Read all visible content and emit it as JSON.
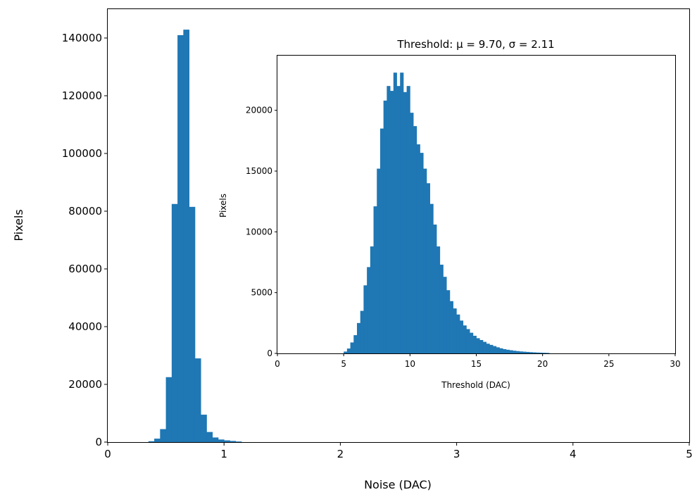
{
  "chart_data": [
    {
      "type": "bar",
      "xlabel": "Noise (DAC)",
      "ylabel": "Pixels",
      "xlim": [
        0,
        5
      ],
      "ylim": [
        0,
        150000
      ],
      "xticks": [
        0,
        1,
        2,
        3,
        4,
        5
      ],
      "yticks": [
        0,
        20000,
        40000,
        60000,
        80000,
        100000,
        120000,
        140000
      ],
      "bin_width": 0.05,
      "color": "#1f77b4",
      "bins": [
        {
          "x": 0.35,
          "y": 300
        },
        {
          "x": 0.4,
          "y": 1200
        },
        {
          "x": 0.45,
          "y": 4500
        },
        {
          "x": 0.5,
          "y": 22500
        },
        {
          "x": 0.55,
          "y": 82500
        },
        {
          "x": 0.6,
          "y": 141000
        },
        {
          "x": 0.65,
          "y": 142900
        },
        {
          "x": 0.7,
          "y": 81500
        },
        {
          "x": 0.75,
          "y": 29000
        },
        {
          "x": 0.8,
          "y": 9500
        },
        {
          "x": 0.85,
          "y": 3500
        },
        {
          "x": 0.9,
          "y": 1600
        },
        {
          "x": 0.95,
          "y": 900
        },
        {
          "x": 1.0,
          "y": 600
        },
        {
          "x": 1.05,
          "y": 400
        },
        {
          "x": 1.1,
          "y": 200
        }
      ]
    },
    {
      "type": "bar",
      "title": "Threshold: μ = 9.70,  σ = 2.11",
      "xlabel": "Threshold (DAC)",
      "ylabel": "Pixels",
      "xlim": [
        0,
        30
      ],
      "ylim": [
        0,
        24500
      ],
      "xticks": [
        0,
        5,
        10,
        15,
        20,
        25,
        30
      ],
      "yticks": [
        0,
        5000,
        10000,
        15000,
        20000
      ],
      "bin_width": 0.25,
      "color": "#1f77b4",
      "bins": [
        {
          "x": 5.0,
          "y": 150
        },
        {
          "x": 5.25,
          "y": 400
        },
        {
          "x": 5.5,
          "y": 900
        },
        {
          "x": 5.75,
          "y": 1500
        },
        {
          "x": 6.0,
          "y": 2500
        },
        {
          "x": 6.25,
          "y": 3500
        },
        {
          "x": 6.5,
          "y": 5600
        },
        {
          "x": 6.75,
          "y": 7100
        },
        {
          "x": 7.0,
          "y": 8800
        },
        {
          "x": 7.25,
          "y": 12100
        },
        {
          "x": 7.5,
          "y": 15200
        },
        {
          "x": 7.75,
          "y": 18500
        },
        {
          "x": 8.0,
          "y": 20800
        },
        {
          "x": 8.25,
          "y": 22000
        },
        {
          "x": 8.5,
          "y": 21600
        },
        {
          "x": 8.75,
          "y": 23100
        },
        {
          "x": 9.0,
          "y": 22000
        },
        {
          "x": 9.25,
          "y": 23100
        },
        {
          "x": 9.5,
          "y": 21500
        },
        {
          "x": 9.75,
          "y": 22000
        },
        {
          "x": 10.0,
          "y": 19800
        },
        {
          "x": 10.25,
          "y": 18700
        },
        {
          "x": 10.5,
          "y": 17200
        },
        {
          "x": 10.75,
          "y": 16500
        },
        {
          "x": 11.0,
          "y": 15200
        },
        {
          "x": 11.25,
          "y": 14000
        },
        {
          "x": 11.5,
          "y": 12300
        },
        {
          "x": 11.75,
          "y": 10600
        },
        {
          "x": 12.0,
          "y": 8800
        },
        {
          "x": 12.25,
          "y": 7300
        },
        {
          "x": 12.5,
          "y": 6300
        },
        {
          "x": 12.75,
          "y": 5200
        },
        {
          "x": 13.0,
          "y": 4300
        },
        {
          "x": 13.25,
          "y": 3700
        },
        {
          "x": 13.5,
          "y": 3200
        },
        {
          "x": 13.75,
          "y": 2700
        },
        {
          "x": 14.0,
          "y": 2300
        },
        {
          "x": 14.25,
          "y": 2000
        },
        {
          "x": 14.5,
          "y": 1700
        },
        {
          "x": 14.75,
          "y": 1450
        },
        {
          "x": 15.0,
          "y": 1250
        },
        {
          "x": 15.25,
          "y": 1100
        },
        {
          "x": 15.5,
          "y": 950
        },
        {
          "x": 15.75,
          "y": 800
        },
        {
          "x": 16.0,
          "y": 700
        },
        {
          "x": 16.25,
          "y": 600
        },
        {
          "x": 16.5,
          "y": 500
        },
        {
          "x": 16.75,
          "y": 420
        },
        {
          "x": 17.0,
          "y": 350
        },
        {
          "x": 17.25,
          "y": 300
        },
        {
          "x": 17.5,
          "y": 260
        },
        {
          "x": 17.75,
          "y": 220
        },
        {
          "x": 18.0,
          "y": 190
        },
        {
          "x": 18.25,
          "y": 160
        },
        {
          "x": 18.5,
          "y": 140
        },
        {
          "x": 18.75,
          "y": 120
        },
        {
          "x": 19.0,
          "y": 100
        },
        {
          "x": 19.25,
          "y": 85
        },
        {
          "x": 19.5,
          "y": 70
        },
        {
          "x": 19.75,
          "y": 60
        },
        {
          "x": 20.0,
          "y": 50
        },
        {
          "x": 20.25,
          "y": 40
        }
      ]
    }
  ]
}
